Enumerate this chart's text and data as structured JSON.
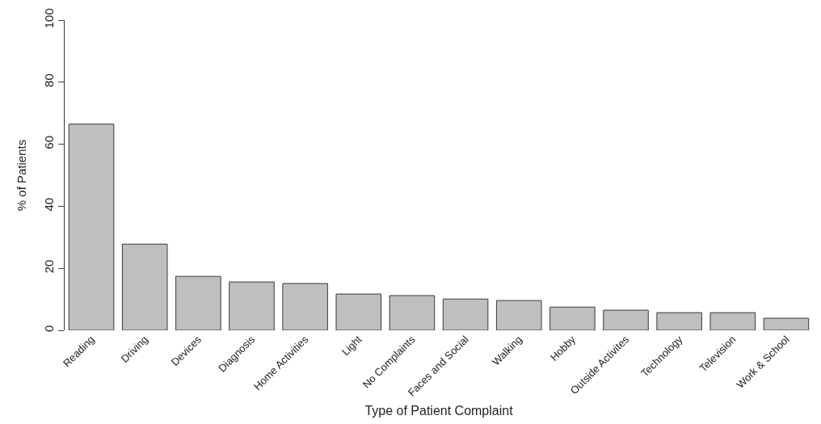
{
  "chart_data": {
    "type": "bar",
    "xlabel": "Type of Patient Complaint",
    "ylabel": "% of Patients",
    "categories": [
      "Reading",
      "Driving",
      "Devices",
      "Diagnosis",
      "Home Activities",
      "Light",
      "No Complaints",
      "Faces and Social",
      "Walking",
      "Hobby",
      "Outside Activites",
      "Technology",
      "Television",
      "Work & School"
    ],
    "values": [
      66.5,
      27.8,
      17.4,
      15.6,
      15.1,
      11.7,
      11.2,
      10.1,
      9.6,
      7.5,
      6.5,
      5.7,
      5.7,
      3.9
    ],
    "color": "#bfbfc0",
    "ylim": [
      0,
      100
    ],
    "yticks": [
      0,
      20,
      40,
      60,
      80,
      100
    ]
  }
}
